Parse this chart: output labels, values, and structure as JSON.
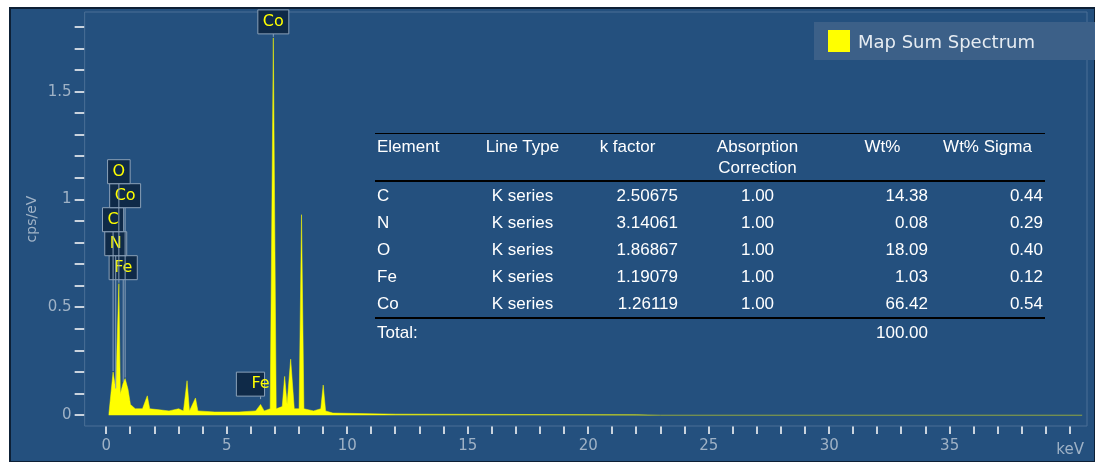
{
  "chart_data": {
    "type": "area",
    "xlabel": "keV",
    "ylabel": "cps/eV",
    "legend": "top right",
    "marker": "none",
    "grid": false,
    "xlim": [
      -0.9,
      40.7
    ],
    "xticks": [
      0,
      {
        "value": 1,
        "label": null
      },
      {
        "value": 2,
        "label": null
      },
      {
        "value": 3,
        "label": null
      },
      {
        "value": 4,
        "label": null
      },
      5,
      {
        "value": 6,
        "label": null
      },
      {
        "value": 7,
        "label": null
      },
      {
        "value": 8,
        "label": null
      },
      {
        "value": 9,
        "label": null
      },
      10,
      {
        "value": 11,
        "label": null
      },
      {
        "value": 12,
        "label": null
      },
      {
        "value": 13,
        "label": null
      },
      {
        "value": 14,
        "label": null
      },
      15,
      {
        "value": 16,
        "label": null
      },
      {
        "value": 17,
        "label": null
      },
      {
        "value": 18,
        "label": null
      },
      {
        "value": 19,
        "label": null
      },
      20,
      {
        "value": 21,
        "label": null
      },
      {
        "value": 22,
        "label": null
      },
      {
        "value": 23,
        "label": null
      },
      {
        "value": 24,
        "label": null
      },
      25,
      {
        "value": 26,
        "label": null
      },
      {
        "value": 27,
        "label": null
      },
      {
        "value": 28,
        "label": null
      },
      {
        "value": 29,
        "label": null
      },
      30,
      {
        "value": 31,
        "label": null
      },
      {
        "value": 32,
        "label": null
      },
      {
        "value": 33,
        "label": null
      },
      {
        "value": 34,
        "label": null
      },
      35,
      {
        "value": 36,
        "label": null
      },
      {
        "value": 37,
        "label": null
      },
      {
        "value": 38,
        "label": null
      },
      {
        "value": 39,
        "label": null
      },
      {
        "value": 40,
        "label": null
      }
    ],
    "ylim": [
      -0.05,
      1.87
    ],
    "yticks": [
      0,
      {
        "value": 0.1,
        "label": null
      },
      {
        "value": 0.2,
        "label": null
      },
      {
        "value": 0.3,
        "label": null
      },
      {
        "value": 0.4,
        "label": null
      },
      0.5,
      {
        "value": 0.6,
        "label": null
      },
      {
        "value": 0.7,
        "label": null
      },
      {
        "value": 0.8,
        "label": null
      },
      {
        "value": 0.9,
        "label": null
      },
      1,
      {
        "value": 1.1,
        "label": null
      },
      {
        "value": 1.2,
        "label": null
      },
      {
        "value": 1.3,
        "label": null
      },
      {
        "value": 1.4,
        "label": null
      },
      1.5,
      {
        "value": 1.6,
        "label": null
      },
      {
        "value": 1.7,
        "label": null
      },
      {
        "value": 1.8,
        "label": null
      }
    ],
    "series": [
      {
        "name": "Map Sum Spectrum",
        "color": "#ffff00",
        "x": [
          0.1,
          0.28,
          0.39,
          0.52,
          0.58,
          0.7,
          0.78,
          0.9,
          1.0,
          1.2,
          1.5,
          1.7,
          1.8,
          2.2,
          2.6,
          3.0,
          3.2,
          3.35,
          3.45,
          3.7,
          3.8,
          4.5,
          5.5,
          6.2,
          6.4,
          6.55,
          6.8,
          6.93,
          7.05,
          7.3,
          7.4,
          7.5,
          7.65,
          7.8,
          8.0,
          8.1,
          8.2,
          8.6,
          8.9,
          9.0,
          9.1,
          9.4,
          12,
          22,
          23,
          40.5
        ],
        "values": [
          0,
          0.2,
          0.12,
          0.61,
          0.1,
          0.15,
          0.17,
          0.12,
          0.05,
          0.03,
          0.03,
          0.09,
          0.03,
          0.025,
          0.02,
          0.03,
          0.02,
          0.16,
          0.02,
          0.08,
          0.02,
          0.015,
          0.015,
          0.02,
          0.05,
          0.02,
          0.03,
          1.75,
          0.03,
          0.04,
          0.18,
          0.05,
          0.26,
          0.03,
          0.03,
          0.93,
          0.03,
          0.02,
          0.03,
          0.14,
          0.02,
          0.01,
          0.005,
          0.002,
          0,
          0
        ]
      }
    ],
    "annotations": [
      {
        "text": "Co",
        "x": 6.93,
        "y": 1.75
      },
      {
        "text": "Fe",
        "x": 0.7,
        "y": 0.15
      },
      {
        "text": "N",
        "x": 0.39,
        "y": 0.12
      },
      {
        "text": "C",
        "x": 0.28,
        "y": 0.2
      },
      {
        "text": "Co",
        "x": 0.78,
        "y": 0.17
      },
      {
        "text": "O",
        "x": 0.52,
        "y": 0.61
      },
      {
        "text": "Fe",
        "x": 6.4,
        "y": 0.07
      },
      "Element",
      "Line Type",
      "k factor",
      "Absorption Correction",
      "Wt%",
      "Wt% Sigma",
      "C",
      "K series",
      "2.50675",
      "1.00",
      "14.38",
      "0.44",
      "N",
      "K series",
      "3.14061",
      "1.00",
      "0.08",
      "0.29",
      "O",
      "K series",
      "1.86867",
      "1.00",
      "18.09",
      "0.40",
      "Fe",
      "K series",
      "1.19079",
      "1.00",
      "1.03",
      "0.12",
      "Co",
      "K series",
      "1.26119",
      "1.00",
      "66.42",
      "0.54",
      "Total:",
      "100.00"
    ]
  }
}
